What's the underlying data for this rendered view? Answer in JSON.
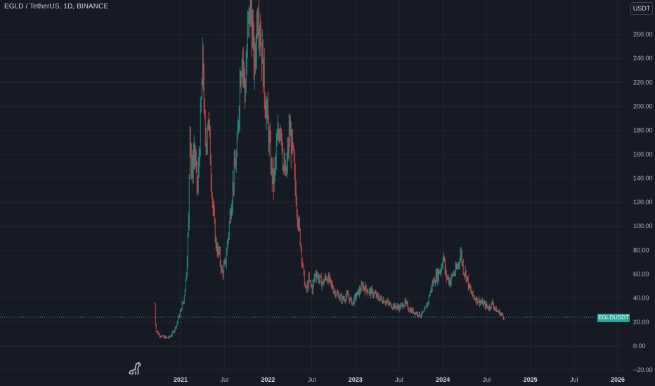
{
  "header": {
    "title": "EGLD / TetherUS, 1D, BINANCE",
    "currency": "USDT"
  },
  "price_tag": {
    "label": "EGLDUSDT"
  },
  "colors": {
    "background": "#161a25",
    "grid": "#232632",
    "up": "#26a69a",
    "down": "#ef5350",
    "text": "#b2b5be",
    "current_price_line": "#26a69a"
  },
  "logo": {
    "icon": "dinosaur-icon"
  },
  "chart_data": {
    "type": "candlestick",
    "series_name": "EGLDUSDT",
    "interval": "1D",
    "exchange": "BINANCE",
    "x_ticks": [
      "2021",
      "Jul",
      "2022",
      "Jul",
      "2023",
      "Jul",
      "2024",
      "Jul",
      "2025",
      "Jul",
      "2026"
    ],
    "x_tick_dates": [
      2021.0,
      2021.5,
      2022.0,
      2022.5,
      2023.0,
      2023.5,
      2024.0,
      2024.5,
      2025.0,
      2025.5,
      2026.0
    ],
    "y_ticks": [
      "260.00",
      "240.00",
      "220.00",
      "200.00",
      "180.00",
      "160.00",
      "140.00",
      "120.00",
      "100.00",
      "80.00",
      "60.00",
      "40.00",
      "20.00",
      "0.00",
      "−20.00"
    ],
    "y_tick_values": [
      260,
      240,
      220,
      200,
      180,
      160,
      140,
      120,
      100,
      80,
      60,
      40,
      20,
      0,
      -20
    ],
    "ylim": [
      -22,
      288
    ],
    "xlim": [
      2020.63,
      2026.1
    ],
    "current_price": 24,
    "grid": true,
    "price_path": [
      [
        "2020.70",
        35
      ],
      [
        "2020.71",
        14
      ],
      [
        "2020.74",
        10
      ],
      [
        "2020.78",
        8
      ],
      [
        "2020.82",
        7
      ],
      [
        "2020.86",
        7
      ],
      [
        "2020.90",
        10
      ],
      [
        "2020.95",
        18
      ],
      [
        "2020.99",
        28
      ],
      [
        "2021.03",
        38
      ],
      [
        "2021.06",
        60
      ],
      [
        "2021.09",
        110
      ],
      [
        "2021.10",
        200
      ],
      [
        "2021.12",
        140
      ],
      [
        "2021.15",
        165
      ],
      [
        "2021.19",
        130
      ],
      [
        "2021.22",
        180
      ],
      [
        "2021.25",
        240
      ],
      [
        "2021.28",
        160
      ],
      [
        "2021.31",
        195
      ],
      [
        "2021.34",
        150
      ],
      [
        "2021.37",
        110
      ],
      [
        "2021.40",
        85
      ],
      [
        "2021.44",
        75
      ],
      [
        "2021.47",
        60
      ],
      [
        "2021.51",
        70
      ],
      [
        "2021.55",
        100
      ],
      [
        "2021.60",
        140
      ],
      [
        "2021.64",
        160
      ],
      [
        "2021.67",
        220
      ],
      [
        "2021.70",
        250
      ],
      [
        "2021.73",
        210
      ],
      [
        "2021.77",
        270
      ],
      [
        "2021.80",
        280
      ],
      [
        "2021.84",
        230
      ],
      [
        "2021.88",
        290
      ],
      [
        "2021.92",
        250
      ],
      [
        "2021.96",
        210
      ],
      [
        "2022.00",
        180
      ],
      [
        "2022.03",
        150
      ],
      [
        "2022.06",
        135
      ],
      [
        "2022.10",
        170
      ],
      [
        "2022.14",
        190
      ],
      [
        "2022.17",
        150
      ],
      [
        "2022.20",
        140
      ],
      [
        "2022.24",
        180
      ],
      [
        "2022.28",
        160
      ],
      [
        "2022.31",
        130
      ],
      [
        "2022.34",
        105
      ],
      [
        "2022.37",
        85
      ],
      [
        "2022.40",
        60
      ],
      [
        "2022.43",
        45
      ],
      [
        "2022.46",
        55
      ],
      [
        "2022.50",
        48
      ],
      [
        "2022.54",
        62
      ],
      [
        "2022.58",
        56
      ],
      [
        "2022.62",
        52
      ],
      [
        "2022.66",
        58
      ],
      [
        "2022.70",
        54
      ],
      [
        "2022.75",
        46
      ],
      [
        "2022.80",
        42
      ],
      [
        "2022.85",
        39
      ],
      [
        "2022.90",
        42
      ],
      [
        "2022.96",
        36
      ],
      [
        "2023.02",
        44
      ],
      [
        "2023.08",
        50
      ],
      [
        "2023.14",
        46
      ],
      [
        "2023.20",
        44
      ],
      [
        "2023.26",
        40
      ],
      [
        "2023.32",
        38
      ],
      [
        "2023.38",
        35
      ],
      [
        "2023.44",
        33
      ],
      [
        "2023.50",
        32
      ],
      [
        "2023.56",
        36
      ],
      [
        "2023.62",
        30
      ],
      [
        "2023.68",
        28
      ],
      [
        "2023.74",
        26
      ],
      [
        "2023.78",
        28
      ],
      [
        "2023.82",
        36
      ],
      [
        "2023.86",
        48
      ],
      [
        "2023.90",
        56
      ],
      [
        "2023.94",
        60
      ],
      [
        "2023.98",
        66
      ],
      [
        "2024.00",
        78
      ],
      [
        "2024.02",
        62
      ],
      [
        "2024.05",
        56
      ],
      [
        "2024.08",
        54
      ],
      [
        "2024.11",
        60
      ],
      [
        "2024.14",
        62
      ],
      [
        "2024.17",
        68
      ],
      [
        "2024.20",
        78
      ],
      [
        "2024.23",
        64
      ],
      [
        "2024.26",
        60
      ],
      [
        "2024.29",
        50
      ],
      [
        "2024.32",
        44
      ],
      [
        "2024.36",
        40
      ],
      [
        "2024.40",
        38
      ],
      [
        "2024.44",
        36
      ],
      [
        "2024.48",
        34
      ],
      [
        "2024.52",
        32
      ],
      [
        "2024.56",
        36
      ],
      [
        "2024.60",
        30
      ],
      [
        "2024.64",
        28
      ],
      [
        "2024.67",
        26
      ],
      [
        "2024.70",
        24
      ]
    ]
  }
}
